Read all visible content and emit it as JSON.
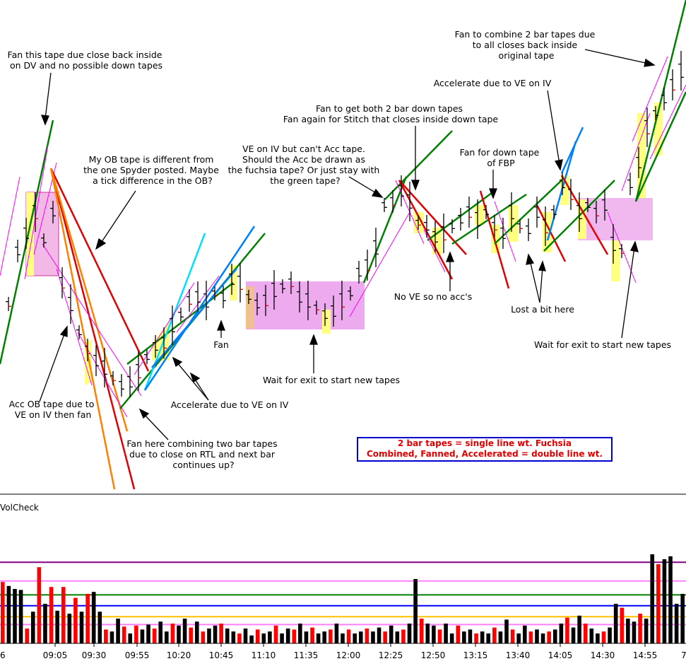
{
  "chart_data": {
    "type": "bar",
    "panel_title": "VolCheck",
    "x_ticks": [
      "09:05",
      "09:30",
      "09:55",
      "10:20",
      "10:45",
      "11:10",
      "11:35",
      "12:00",
      "12:25",
      "12:50",
      "13:15",
      "13:40",
      "14:05",
      "14:30",
      "14:55"
    ],
    "x_tick_left_partial": "6",
    "x_tick_right_partial": "7",
    "volume": [
      0.62,
      0.58,
      0.55,
      0.54,
      0.15,
      0.32,
      0.77,
      0.4,
      0.57,
      0.33,
      0.57,
      0.3,
      0.46,
      0.32,
      0.5,
      0.52,
      0.32,
      0.14,
      0.12,
      0.25,
      0.17,
      0.1,
      0.18,
      0.14,
      0.19,
      0.15,
      0.22,
      0.12,
      0.2,
      0.18,
      0.25,
      0.16,
      0.22,
      0.12,
      0.15,
      0.18,
      0.2,
      0.15,
      0.12,
      0.1,
      0.15,
      0.08,
      0.14,
      0.1,
      0.12,
      0.18,
      0.1,
      0.15,
      0.14,
      0.2,
      0.12,
      0.16,
      0.1,
      0.12,
      0.14,
      0.2,
      0.1,
      0.14,
      0.1,
      0.12,
      0.15,
      0.12,
      0.16,
      0.12,
      0.18,
      0.12,
      0.14,
      0.2,
      0.65,
      0.25,
      0.2,
      0.18,
      0.14,
      0.2,
      0.1,
      0.18,
      0.12,
      0.14,
      0.1,
      0.12,
      0.1,
      0.16,
      0.12,
      0.24,
      0.14,
      0.1,
      0.18,
      0.12,
      0.14,
      0.1,
      0.12,
      0.14,
      0.2,
      0.26,
      0.16,
      0.28,
      0.2,
      0.15,
      0.1,
      0.12,
      0.16,
      0.4,
      0.36,
      0.25,
      0.22,
      0.3,
      0.25,
      0.9,
      0.8,
      0.85,
      0.88,
      0.4,
      0.5
    ],
    "volume_colors_red": [
      0,
      4,
      6,
      8,
      10,
      12,
      14,
      17,
      20,
      22,
      25,
      28,
      31,
      33,
      36,
      39,
      42,
      45,
      48,
      51,
      54,
      57,
      60,
      63,
      66,
      69,
      72,
      75,
      78,
      81,
      84,
      87,
      90,
      93,
      96,
      99,
      102,
      105,
      108
    ],
    "ref_lines": [
      {
        "level": 0.82,
        "color": "#800080"
      },
      {
        "level": 0.63,
        "color": "#ff80ff"
      },
      {
        "level": 0.49,
        "color": "#008000"
      },
      {
        "level": 0.38,
        "color": "#0000ff"
      },
      {
        "level": 0.27,
        "color": "#ffc000"
      },
      {
        "level": 0.19,
        "color": "#ff80ff"
      }
    ]
  },
  "annotations": {
    "a1": [
      "Fan this tape due close back inside",
      "on DV and no possible down tapes"
    ],
    "a2": [
      "My OB tape is different from",
      "the one Spyder posted. Maybe",
      "a tick difference in the OB?"
    ],
    "a3": [
      "VE on IV but can't Acc tape.",
      "Should  the Acc be drawn as",
      "the fuchsia tape? Or just stay with",
      "the green tape?"
    ],
    "a4": [
      "Fan to get both 2 bar down tapes",
      "Fan again for Stitch that closes inside down tape"
    ],
    "a5": [
      "Fan for down tape",
      "of FBP"
    ],
    "a6": [
      "Accelerate due to VE on IV"
    ],
    "a7": [
      "Fan to combine 2 bar tapes due",
      "to all closes back inside",
      "original tape"
    ],
    "a8": [
      "Acc OB tape due to",
      "VE on IV then fan"
    ],
    "a9": [
      "Accelerate due to VE on IV"
    ],
    "a10": [
      "Fan"
    ],
    "a11": [
      "Fan here combining two bar tapes",
      "due to close on RTL and next bar",
      "continues up?"
    ],
    "a12": [
      "Wait for exit to start new tapes"
    ],
    "a13": [
      "No VE so no acc's"
    ],
    "a14": [
      "Lost a bit here"
    ],
    "a15": [
      "Wait for exit to start new tapes"
    ]
  },
  "legend": {
    "line1": "2 bar tapes = single line wt. Fuchsia",
    "line2": "Combined, Fanned, Accelerated = double line wt."
  },
  "colors": {
    "fuchsia": "#ff00ff",
    "green": "#008000",
    "red": "#e00000",
    "orange": "#ff8000",
    "blue": "#0080ff",
    "cyan": "#00e0ff",
    "yellow_fill": "#ffff80",
    "pink_fill": "#f0a0f0"
  }
}
